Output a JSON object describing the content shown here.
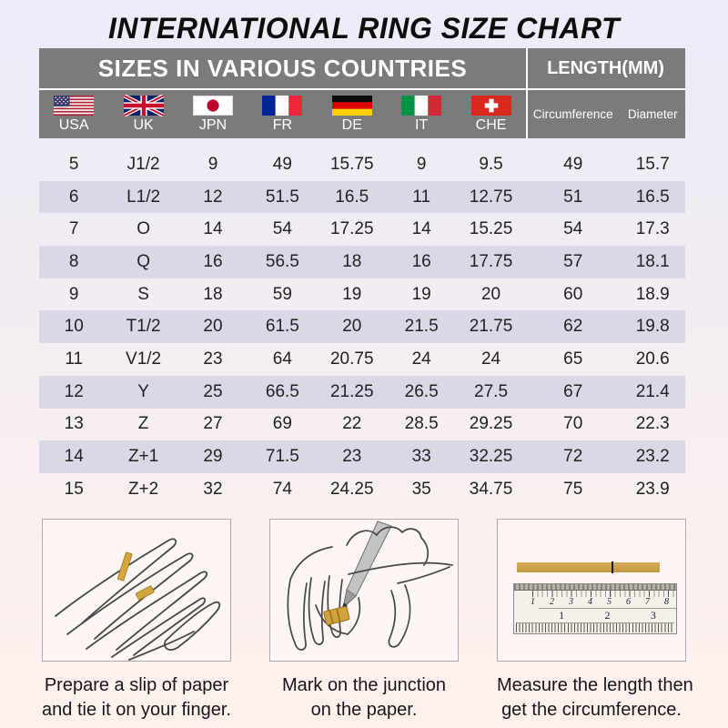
{
  "page": {
    "title": "INTERNATIONAL RING SIZE CHART"
  },
  "table": {
    "header_left": "SIZES IN VARIOUS COUNTRIES",
    "header_right": "LENGTH(MM)",
    "countries": [
      {
        "code": "USA"
      },
      {
        "code": "UK"
      },
      {
        "code": "JPN"
      },
      {
        "code": "FR"
      },
      {
        "code": "DE"
      },
      {
        "code": "IT"
      },
      {
        "code": "CHE"
      }
    ],
    "length_columns": [
      "Circumference",
      "Diameter"
    ],
    "rows": [
      [
        "5",
        "J1/2",
        "9",
        "49",
        "15.75",
        "9",
        "9.5",
        "49",
        "15.7"
      ],
      [
        "6",
        "L1/2",
        "12",
        "51.5",
        "16.5",
        "11",
        "12.75",
        "51",
        "16.5"
      ],
      [
        "7",
        "O",
        "14",
        "54",
        "17.25",
        "14",
        "15.25",
        "54",
        "17.3"
      ],
      [
        "8",
        "Q",
        "16",
        "56.5",
        "18",
        "16",
        "17.75",
        "57",
        "18.1"
      ],
      [
        "9",
        "S",
        "18",
        "59",
        "19",
        "19",
        "20",
        "60",
        "18.9"
      ],
      [
        "10",
        "T1/2",
        "20",
        "61.5",
        "20",
        "21.5",
        "21.75",
        "62",
        "19.8"
      ],
      [
        "11",
        "V1/2",
        "23",
        "64",
        "20.75",
        "24",
        "24",
        "65",
        "20.6"
      ],
      [
        "12",
        "Y",
        "25",
        "66.5",
        "21.25",
        "26.5",
        "27.5",
        "67",
        "21.4"
      ],
      [
        "13",
        "Z",
        "27",
        "69",
        "22",
        "28.5",
        "29.25",
        "70",
        "22.3"
      ],
      [
        "14",
        "Z+1",
        "29",
        "71.5",
        "23",
        "33",
        "32.25",
        "72",
        "23.2"
      ],
      [
        "15",
        "Z+2",
        "32",
        "74",
        "24.25",
        "35",
        "34.75",
        "75",
        "23.9"
      ]
    ]
  },
  "chart_data": {
    "type": "table",
    "title": "INTERNATIONAL RING SIZE CHART",
    "columns": [
      "USA",
      "UK",
      "JPN",
      "FR",
      "DE",
      "IT",
      "CHE",
      "Circumference",
      "Diameter"
    ],
    "rows": [
      [
        "5",
        "J1/2",
        "9",
        "49",
        "15.75",
        "9",
        "9.5",
        "49",
        "15.7"
      ],
      [
        "6",
        "L1/2",
        "12",
        "51.5",
        "16.5",
        "11",
        "12.75",
        "51",
        "16.5"
      ],
      [
        "7",
        "O",
        "14",
        "54",
        "17.25",
        "14",
        "15.25",
        "54",
        "17.3"
      ],
      [
        "8",
        "Q",
        "16",
        "56.5",
        "18",
        "16",
        "17.75",
        "57",
        "18.1"
      ],
      [
        "9",
        "S",
        "18",
        "59",
        "19",
        "19",
        "20",
        "60",
        "18.9"
      ],
      [
        "10",
        "T1/2",
        "20",
        "61.5",
        "20",
        "21.5",
        "21.75",
        "62",
        "19.8"
      ],
      [
        "11",
        "V1/2",
        "23",
        "64",
        "20.75",
        "24",
        "24",
        "65",
        "20.6"
      ],
      [
        "12",
        "Y",
        "25",
        "66.5",
        "21.25",
        "26.5",
        "27.5",
        "67",
        "21.4"
      ],
      [
        "13",
        "Z",
        "27",
        "69",
        "22",
        "28.5",
        "29.25",
        "70",
        "22.3"
      ],
      [
        "14",
        "Z+1",
        "29",
        "71.5",
        "23",
        "33",
        "32.25",
        "72",
        "23.2"
      ],
      [
        "15",
        "Z+2",
        "32",
        "74",
        "24.25",
        "35",
        "34.75",
        "75",
        "23.9"
      ]
    ]
  },
  "instructions": [
    {
      "line1": "Prepare a slip of paper",
      "line2": "and tie it on your finger."
    },
    {
      "line1": "Mark on the junction",
      "line2": "on the paper."
    },
    {
      "line1": "Measure the length then",
      "line2": "get the circumference."
    }
  ],
  "ruler": {
    "top_scale": [
      "1",
      "2",
      "3",
      "4",
      "5",
      "6",
      "7",
      "8"
    ],
    "mid_scale": [
      "1",
      "2",
      "3"
    ]
  },
  "colors": {
    "header_gray": "#7b7b7b",
    "row_stripe": "#dcd7e7",
    "paper_strip_yellow": "#d2a53e",
    "background_top": "#ecebf8",
    "background_bottom": "#fdf1ec"
  }
}
